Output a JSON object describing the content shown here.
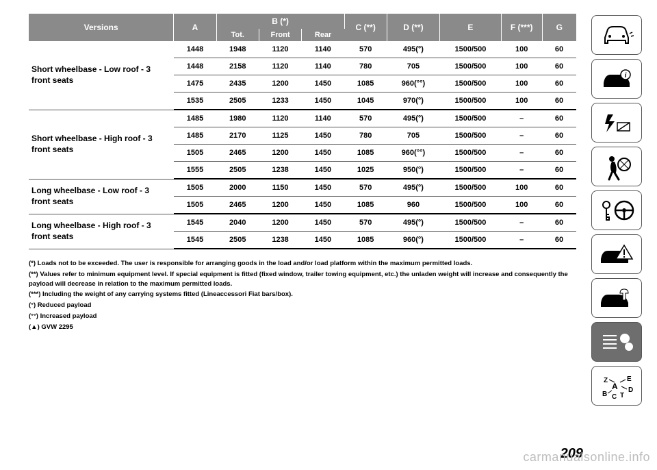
{
  "table": {
    "header": {
      "versions": "Versions",
      "a": "A",
      "b": "B (*)",
      "b_tot": "Tot.",
      "b_front": "Front",
      "b_rear": "Rear",
      "c": "C (**)",
      "d": "D (**)",
      "e": "E",
      "f": "F (***)",
      "g": "G"
    },
    "col_widths": [
      "170",
      "50",
      "50",
      "50",
      "50",
      "50",
      "62",
      "72",
      "48",
      "40"
    ],
    "groups": [
      {
        "label": "Short wheelbase - Low roof - 3 front seats",
        "rows": [
          [
            "1448",
            "1948",
            "1120",
            "1140",
            "570",
            "495(°)",
            "1500/500",
            "100",
            "60"
          ],
          [
            "1448",
            "2158",
            "1120",
            "1140",
            "780",
            "705",
            "1500/500",
            "100",
            "60"
          ],
          [
            "1475",
            "2435",
            "1200",
            "1450",
            "1085",
            "960(°°)",
            "1500/500",
            "100",
            "60"
          ],
          [
            "1535",
            "2505",
            "1233",
            "1450",
            "1045",
            "970(°)",
            "1500/500",
            "100",
            "60"
          ]
        ]
      },
      {
        "label": "Short wheelbase - High roof - 3 front seats",
        "rows": [
          [
            "1485",
            "1980",
            "1120",
            "1140",
            "570",
            "495(°)",
            "1500/500",
            "–",
            "60"
          ],
          [
            "1485",
            "2170",
            "1125",
            "1450",
            "780",
            "705",
            "1500/500",
            "–",
            "60"
          ],
          [
            "1505",
            "2465",
            "1200",
            "1450",
            "1085",
            "960(°°)",
            "1500/500",
            "–",
            "60"
          ],
          [
            "1555",
            "2505",
            "1238",
            "1450",
            "1025",
            "950(°)",
            "1500/500",
            "–",
            "60"
          ]
        ]
      },
      {
        "label": "Long wheelbase - Low roof - 3 front seats",
        "rows": [
          [
            "1505",
            "2000",
            "1150",
            "1450",
            "570",
            "495(°)",
            "1500/500",
            "100",
            "60"
          ],
          [
            "1505",
            "2465",
            "1200",
            "1450",
            "1085",
            "960",
            "1500/500",
            "100",
            "60"
          ]
        ]
      },
      {
        "label": "Long wheelbase - High roof - 3 front seats",
        "rows": [
          [
            "1545",
            "2040",
            "1200",
            "1450",
            "570",
            "495(°)",
            "1500/500",
            "–",
            "60"
          ],
          [
            "1545",
            "2505",
            "1238",
            "1450",
            "1085",
            "960(°)",
            "1500/500",
            "–",
            "60"
          ]
        ]
      }
    ]
  },
  "footnotes": [
    "(*) Loads not to be exceeded. The user is responsible for arranging goods in the load and/or load platform within the maximum permitted loads.",
    "(**) Values refer to minimum equipment level. If special equipment is fitted (fixed window, trailer towing equipment, etc.) the unladen weight will increase and consequently the payload will decrease in relation to the maximum permitted loads.",
    "(***) Including the weight of any carrying systems fitted (Lineaccessori Fiat bars/box).",
    "(°) Reduced payload",
    "(°°) Increased payload",
    "(▲) GVW 2295"
  ],
  "page_number": "209",
  "watermark": "carmanualsonline.info",
  "sidebar_icons": [
    "car-front-icon",
    "car-info-icon",
    "warning-light-icon",
    "airbag-icon",
    "key-steering-icon",
    "car-hazard-icon",
    "car-service-icon",
    "list-settings-icon",
    "alphabet-index-icon"
  ]
}
